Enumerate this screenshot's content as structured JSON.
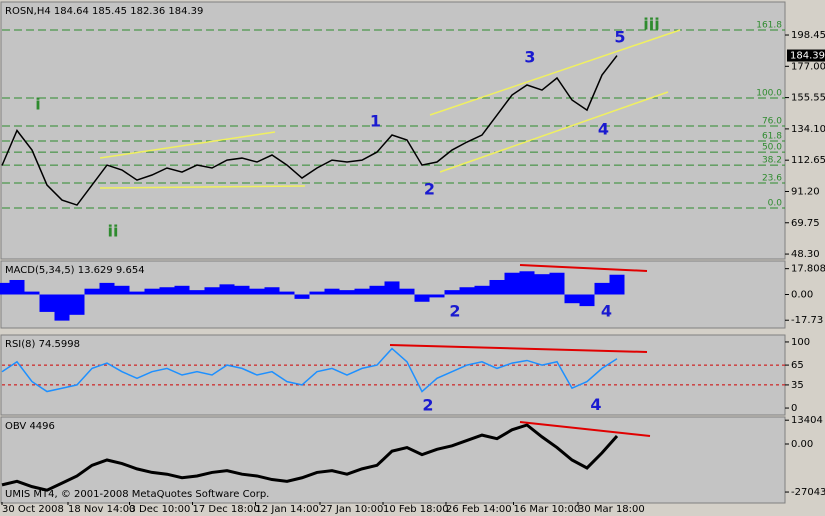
{
  "chart_data": [
    {
      "type": "line",
      "title": "ROSN,H4  184.64 185.45 182.36 184.39",
      "color": "#000000",
      "x": [
        0,
        1,
        2,
        3,
        4,
        5,
        6,
        7,
        8,
        9,
        10,
        11,
        12,
        13,
        14,
        15,
        16,
        17,
        18,
        19,
        20,
        21,
        22,
        23,
        24,
        25,
        26,
        27,
        28,
        29,
        30,
        31,
        32,
        33,
        34,
        35,
        36,
        37,
        38,
        39,
        40,
        41
      ],
      "values": [
        109,
        133,
        119.6,
        95.6,
        85.3,
        81.9,
        95.6,
        109.3,
        105.9,
        99,
        102.5,
        107.3,
        104.5,
        109.3,
        107.3,
        112.7,
        114.1,
        111.4,
        116.2,
        109.3,
        100.4,
        107.3,
        112.7,
        111.4,
        112.7,
        118.2,
        129.9,
        126.5,
        109.3,
        111.4,
        119.6,
        125.1,
        129.9,
        143.6,
        157.3,
        164.2,
        160.7,
        169,
        153.9,
        147,
        171,
        184.39
      ],
      "ylim": [
        45.6,
        220.4
      ],
      "yticks": [
        {
          "value": 48.3,
          "label": "48.30"
        },
        69.75,
        {
          "value": 91.2,
          "label": "91.20"
        },
        112.65,
        {
          "value": 134.1,
          "label": "134.10"
        },
        155.55,
        {
          "value": 177,
          "label": "177.00"
        },
        198.45
      ],
      "last_price": 184.39,
      "fib_color": "#2e8b2e",
      "fib_levels": [
        {
          "value": 201.9,
          "label": "161.8"
        },
        {
          "value": 155.3,
          "label": "100.0"
        },
        {
          "value": 136.1,
          "label": "76.0"
        },
        {
          "value": 125.8,
          "label": "61.8"
        },
        {
          "value": 118.2,
          "label": "50.0"
        },
        {
          "value": 109.3,
          "label": "38.2"
        },
        {
          "value": 97,
          "label": "23.6"
        },
        {
          "value": 79.9,
          "label": "0.0"
        }
      ],
      "annotations": [
        {
          "text": "i",
          "x": 2.4,
          "y": 150.5,
          "color": "#2e8b2e"
        },
        {
          "text": "ii",
          "x": 7.4,
          "y": 63.4,
          "color": "#2e8b2e"
        },
        {
          "text": "1",
          "x": 24.9,
          "y": 138.8,
          "color": "#1a1ad0"
        },
        {
          "text": "2",
          "x": 28.5,
          "y": 92.2,
          "color": "#1a1ad0"
        },
        {
          "text": "3",
          "x": 35.2,
          "y": 182.7,
          "color": "#1a1ad0"
        },
        {
          "text": "4",
          "x": 40.1,
          "y": 133.3,
          "color": "#1a1ad0"
        },
        {
          "text": "5",
          "x": 41.2,
          "y": 196.4,
          "color": "#1a1ad0"
        },
        {
          "text": "iii",
          "x": 43.3,
          "y": 205.3,
          "color": "#2e8b2e"
        }
      ]
    },
    {
      "type": "bar",
      "title": "MACD(5,34,5) 13.629 9.654",
      "color": "#0000ff",
      "x": [
        0,
        1,
        2,
        3,
        4,
        5,
        6,
        7,
        8,
        9,
        10,
        11,
        12,
        13,
        14,
        15,
        16,
        17,
        18,
        19,
        20,
        21,
        22,
        23,
        24,
        25,
        26,
        27,
        28,
        29,
        30,
        31,
        32,
        33,
        34,
        35,
        36,
        37,
        38,
        39,
        40,
        41
      ],
      "values": [
        8,
        10,
        2,
        -12,
        -18,
        -14,
        4,
        8,
        6,
        2,
        4,
        5,
        6,
        3,
        5,
        7,
        6,
        4,
        5,
        2,
        -3,
        2,
        4,
        3,
        4,
        6,
        9,
        4,
        -5,
        -2,
        3,
        5,
        6,
        10,
        15,
        16,
        14,
        15,
        -6,
        -8,
        8,
        13.629
      ],
      "ylim": [
        -22.4,
        22.4
      ],
      "yticks": [
        17.808,
        {
          "value": 0,
          "label": "0.00"
        },
        -17.73
      ],
      "annotations": [
        {
          "text": "2",
          "x": 30.2,
          "y": -12,
          "color": "#1a1ad0"
        },
        {
          "text": "4",
          "x": 40.3,
          "y": -12,
          "color": "#1a1ad0"
        }
      ]
    },
    {
      "type": "line",
      "title": "RSI(8) 74.5998",
      "color": "#1e90ff",
      "x": [
        0,
        1,
        2,
        3,
        4,
        5,
        6,
        7,
        8,
        9,
        10,
        11,
        12,
        13,
        14,
        15,
        16,
        17,
        18,
        19,
        20,
        21,
        22,
        23,
        24,
        25,
        26,
        27,
        28,
        29,
        30,
        31,
        32,
        33,
        34,
        35,
        36,
        37,
        38,
        39,
        40,
        41
      ],
      "values": [
        55,
        70,
        40,
        25,
        30,
        35,
        60,
        68,
        55,
        45,
        55,
        60,
        50,
        55,
        50,
        65,
        60,
        50,
        55,
        40,
        35,
        55,
        60,
        50,
        60,
        65,
        90,
        70,
        25,
        45,
        55,
        65,
        70,
        60,
        68,
        72,
        65,
        70,
        30,
        40,
        60,
        74.5998
      ],
      "ylim": [
        -9,
        109
      ],
      "yticks": [
        100,
        65,
        35,
        0
      ],
      "level_lines": [
        65,
        35
      ],
      "level_color": "#d00000",
      "annotations": [
        {
          "text": "2",
          "x": 28.4,
          "y": 3,
          "color": "#1a1ad0"
        },
        {
          "text": "4",
          "x": 39.6,
          "y": 4,
          "color": "#1a1ad0"
        }
      ]
    },
    {
      "type": "line",
      "title": "OBV 4496",
      "color": "#000000",
      "footer": "UMIS MT4, © 2001-2008 MetaQuotes Software Corp.",
      "x": [
        0,
        1,
        2,
        3,
        4,
        5,
        6,
        7,
        8,
        9,
        10,
        11,
        12,
        13,
        14,
        15,
        16,
        17,
        18,
        19,
        20,
        21,
        22,
        23,
        24,
        25,
        26,
        27,
        28,
        29,
        30,
        31,
        32,
        33,
        34,
        35,
        36,
        37,
        38,
        39,
        40,
        41
      ],
      "values": [
        -23000,
        -21000,
        -24000,
        -26000,
        -22000,
        -18000,
        -12000,
        -9000,
        -11000,
        -14000,
        -16000,
        -17000,
        -19000,
        -18000,
        -16000,
        -15000,
        -17000,
        -18000,
        -20000,
        -21000,
        -19000,
        -16000,
        -15000,
        -17000,
        -14000,
        -12000,
        -4000,
        -2000,
        -6000,
        -3000,
        -1000,
        2000,
        5000,
        3000,
        8000,
        10700,
        4000,
        -2000,
        -9000,
        -13500,
        -5000,
        4496
      ],
      "ylim": [
        -32650,
        14640
      ],
      "yticks": [
        13404,
        {
          "value": 0,
          "label": "0.00"
        },
        -27043
      ],
      "xlim": [
        0,
        52
      ],
      "xticks": [
        {
          "value": 0,
          "label": "30 Oct 2008"
        },
        {
          "value": 4.4,
          "label": "18 Nov 14:00"
        },
        {
          "value": 8.5,
          "label": "3 Dec 10:00"
        },
        {
          "value": 12.7,
          "label": "17 Dec 18:00"
        },
        {
          "value": 16.9,
          "label": "12 Jan 14:00"
        },
        {
          "value": 21.2,
          "label": "27 Jan 10:00"
        },
        {
          "value": 25.4,
          "label": "10 Feb 18:00"
        },
        {
          "value": 29.6,
          "label": "26 Feb 14:00"
        },
        {
          "value": 34.1,
          "label": "16 Mar 10:00"
        },
        {
          "value": 38.4,
          "label": "30 Mar 18:00"
        }
      ]
    }
  ]
}
